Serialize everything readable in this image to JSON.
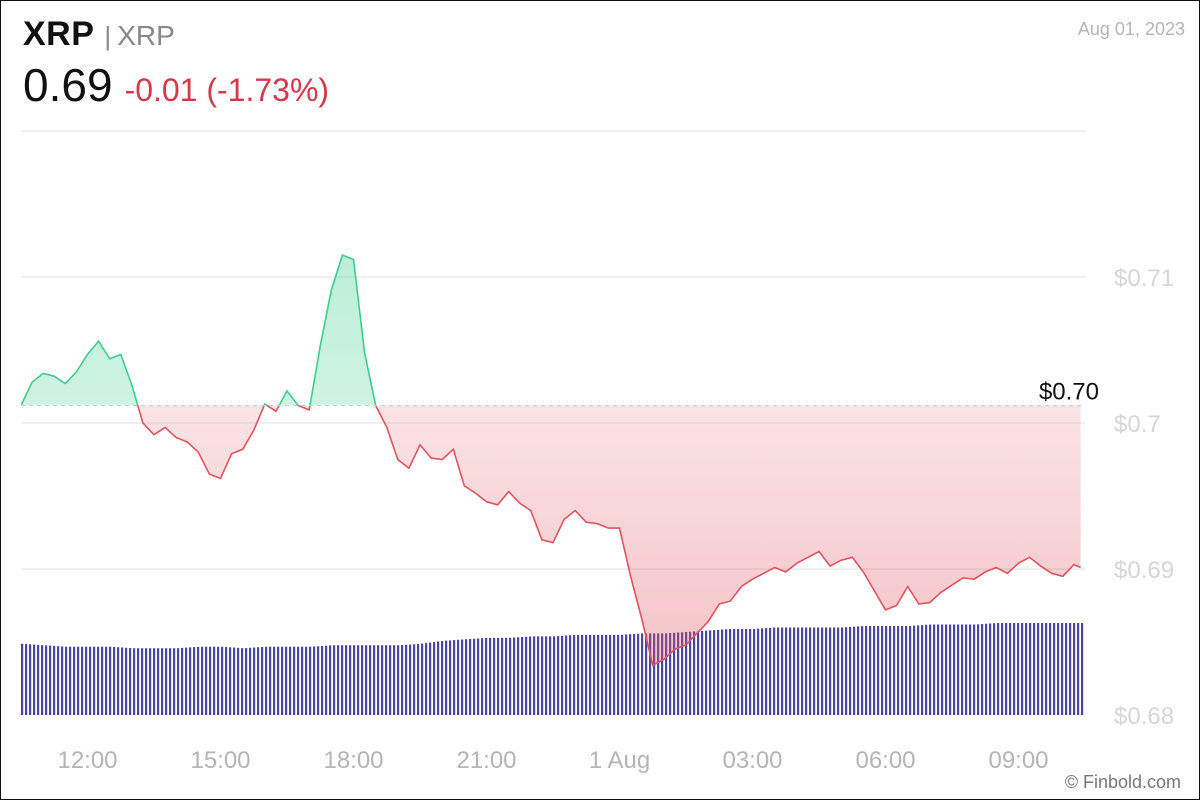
{
  "header": {
    "symbol": "XRP",
    "separator": "|",
    "name": "XRP",
    "price": "0.69",
    "change": "-0.01 (-1.73%)",
    "date": "Aug 01, 2023"
  },
  "credit": "© Finbold.com",
  "colors": {
    "up": "#3ecf8e",
    "down": "#e0535f",
    "volume": "#4b45a6",
    "grid": "#e2e2e2"
  },
  "chart_data": {
    "type": "area",
    "ylim": [
      0.68,
      0.72
    ],
    "yticks": [
      0.68,
      0.69,
      0.7,
      0.71
    ],
    "ytick_labels": [
      "$0.68",
      "$0.69",
      "$0.7",
      "$0.71"
    ],
    "xlim": [
      10.5,
      34.5
    ],
    "xticks": [
      12,
      15,
      18,
      21,
      24,
      27,
      30,
      33
    ],
    "xtick_labels": [
      "12:00",
      "15:00",
      "18:00",
      "21:00",
      "1 Aug",
      "03:00",
      "06:00",
      "09:00"
    ],
    "reference": {
      "value": 0.7012,
      "label": "$0.70"
    },
    "price": {
      "x": [
        10.5,
        10.75,
        11,
        11.25,
        11.5,
        11.75,
        12,
        12.25,
        12.5,
        12.75,
        13,
        13.25,
        13.5,
        13.75,
        14,
        14.25,
        14.5,
        14.75,
        15,
        15.25,
        15.5,
        15.75,
        16,
        16.25,
        16.5,
        16.75,
        17,
        17.25,
        17.5,
        17.75,
        18,
        18.25,
        18.5,
        18.75,
        19,
        19.25,
        19.5,
        19.75,
        20,
        20.25,
        20.5,
        20.75,
        21,
        21.25,
        21.5,
        21.75,
        22,
        22.25,
        22.5,
        22.75,
        23,
        23.25,
        23.5,
        23.75,
        24,
        24.25,
        24.5,
        24.75,
        25,
        25.25,
        25.5,
        25.75,
        26,
        26.25,
        26.5,
        26.75,
        27,
        27.25,
        27.5,
        27.75,
        28,
        28.25,
        28.5,
        28.75,
        29,
        29.25,
        29.5,
        29.75,
        30,
        30.25,
        30.5,
        30.75,
        31,
        31.25,
        31.5,
        31.75,
        32,
        32.25,
        32.5,
        32.75,
        33,
        33.25,
        33.5,
        33.75,
        34,
        34.25,
        34.4
      ],
      "y": [
        0.7012,
        0.7028,
        0.7034,
        0.7032,
        0.7027,
        0.7035,
        0.7047,
        0.7056,
        0.7044,
        0.7047,
        0.7026,
        0.7,
        0.6992,
        0.6997,
        0.699,
        0.6987,
        0.698,
        0.6965,
        0.6962,
        0.6979,
        0.6982,
        0.6995,
        0.7013,
        0.7008,
        0.7022,
        0.7012,
        0.7009,
        0.7053,
        0.7091,
        0.7115,
        0.7112,
        0.7048,
        0.7012,
        0.6997,
        0.6975,
        0.6969,
        0.6985,
        0.6976,
        0.6975,
        0.6982,
        0.6957,
        0.6952,
        0.6946,
        0.6944,
        0.6953,
        0.6945,
        0.694,
        0.692,
        0.6918,
        0.6934,
        0.694,
        0.6932,
        0.6931,
        0.6928,
        0.6928,
        0.6895,
        0.6866,
        0.6834,
        0.6838,
        0.6845,
        0.6848,
        0.6856,
        0.6864,
        0.6876,
        0.6878,
        0.6888,
        0.6893,
        0.6897,
        0.6901,
        0.6898,
        0.6904,
        0.6908,
        0.6912,
        0.6902,
        0.6906,
        0.6908,
        0.6898,
        0.6885,
        0.6872,
        0.6875,
        0.6888,
        0.6876,
        0.6877,
        0.6884,
        0.6889,
        0.6894,
        0.6893,
        0.6898,
        0.6901,
        0.6897,
        0.6904,
        0.6908,
        0.6902,
        0.6897,
        0.6895,
        0.6903,
        0.6901
      ]
    },
    "volume": {
      "x": [
        10.5,
        11,
        11.5,
        12,
        12.5,
        13,
        13.5,
        14,
        14.5,
        15,
        15.5,
        16,
        16.5,
        17,
        17.5,
        18,
        18.5,
        19,
        19.5,
        20,
        20.5,
        21,
        21.5,
        22,
        22.5,
        23,
        23.5,
        24,
        24.5,
        25,
        25.5,
        26,
        26.5,
        27,
        27.5,
        28,
        28.5,
        29,
        29.5,
        30,
        30.5,
        31,
        31.5,
        32,
        32.5,
        33,
        33.5,
        34,
        34.5
      ],
      "values": [
        48,
        47,
        46,
        46,
        46,
        45,
        45,
        45,
        46,
        46,
        45,
        46,
        46,
        46,
        47,
        47,
        47,
        47,
        48,
        50,
        51,
        52,
        52,
        53,
        53,
        54,
        54,
        54,
        55,
        55,
        56,
        57,
        58,
        58,
        59,
        59,
        59,
        59,
        60,
        60,
        60,
        61,
        61,
        61,
        62,
        62,
        62,
        62,
        62
      ]
    }
  }
}
